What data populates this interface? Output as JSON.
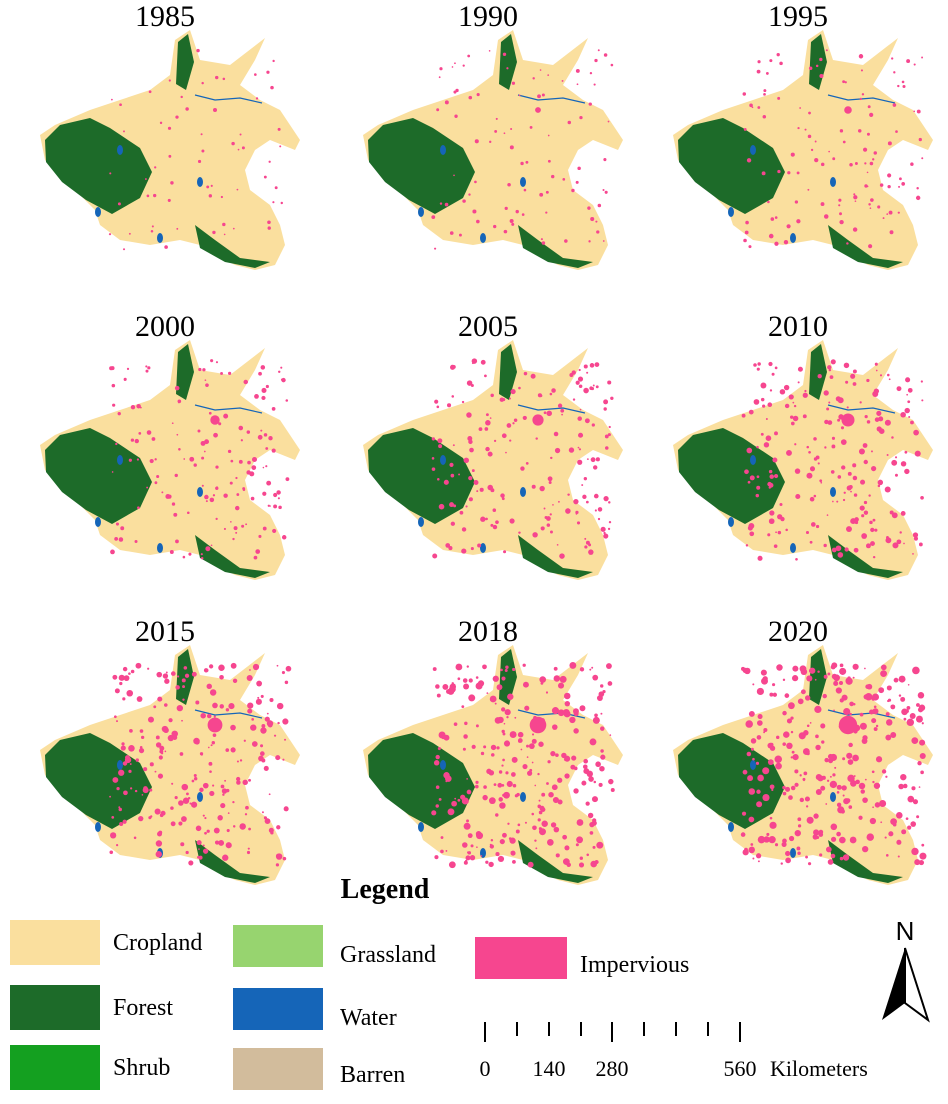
{
  "panels": [
    {
      "label": "1985"
    },
    {
      "label": "1990"
    },
    {
      "label": "1995"
    },
    {
      "label": "2000"
    },
    {
      "label": "2005"
    },
    {
      "label": "2010"
    },
    {
      "label": "2015"
    },
    {
      "label": "2018"
    },
    {
      "label": "2020"
    }
  ],
  "legend": {
    "title": "Legend",
    "items": [
      {
        "label": "Cropland",
        "color": "#fadf9e"
      },
      {
        "label": "Forest",
        "color": "#1d6b29"
      },
      {
        "label": "Shrub",
        "color": "#14a020"
      },
      {
        "label": "Grassland",
        "color": "#97d46f"
      },
      {
        "label": "Water",
        "color": "#1565b8"
      },
      {
        "label": "Barren",
        "color": "#d2bc9c"
      },
      {
        "label": "Impervious",
        "color": "#f6468f"
      }
    ]
  },
  "scale_bar": {
    "labels": [
      "0",
      "140",
      "280",
      "560"
    ],
    "unit": "Kilometers"
  },
  "north_arrow": "N"
}
